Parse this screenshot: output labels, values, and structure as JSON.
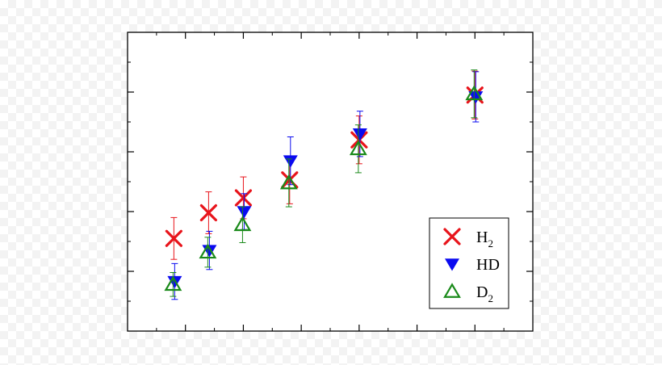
{
  "chart_data": {
    "type": "scatter",
    "title": "",
    "xlabel": "",
    "ylabel": "",
    "xlim": [
      0,
      7
    ],
    "ylim": [
      0,
      5
    ],
    "x_major_ticks": [
      1,
      2,
      3,
      4,
      5,
      6
    ],
    "x_minor_ticks": [
      0.5,
      1.5,
      2.5,
      3.5,
      4.5,
      5.5,
      6.5
    ],
    "y_major_ticks": [
      1,
      2,
      3,
      4
    ],
    "y_minor_ticks": [
      0.5,
      1.5,
      2.5,
      3.5,
      4.5
    ],
    "error_bars": true,
    "grid": false,
    "legend_position": "bottom-right",
    "series": [
      {
        "name": "H",
        "subscript": "2",
        "marker": "x",
        "color": "#e8141b",
        "points": [
          {
            "x": 0.8,
            "y": 1.55,
            "err": 0.35
          },
          {
            "x": 1.4,
            "y": 1.98,
            "err": 0.35
          },
          {
            "x": 2.0,
            "y": 2.23,
            "err": 0.35
          },
          {
            "x": 2.8,
            "y": 2.53,
            "err": 0.4
          },
          {
            "x": 4.0,
            "y": 3.2,
            "err": 0.4
          },
          {
            "x": 6.0,
            "y": 3.95,
            "err": 0.4
          }
        ]
      },
      {
        "name": "HD",
        "subscript": "",
        "marker": "triangle-down",
        "color": "#0a0af0",
        "points": [
          {
            "x": 0.8,
            "y": 0.83,
            "err": 0.3
          },
          {
            "x": 1.4,
            "y": 1.35,
            "err": 0.32
          },
          {
            "x": 2.0,
            "y": 2.0,
            "err": 0.3
          },
          {
            "x": 2.8,
            "y": 2.85,
            "err": 0.4
          },
          {
            "x": 4.0,
            "y": 3.3,
            "err": 0.38
          },
          {
            "x": 6.0,
            "y": 3.92,
            "err": 0.42
          }
        ]
      },
      {
        "name": "D",
        "subscript": "2",
        "marker": "triangle-up",
        "color": "#1a8a1a",
        "points": [
          {
            "x": 0.8,
            "y": 0.78,
            "err": 0.2
          },
          {
            "x": 1.4,
            "y": 1.32,
            "err": 0.25
          },
          {
            "x": 2.0,
            "y": 1.78,
            "err": 0.3
          },
          {
            "x": 2.8,
            "y": 2.48,
            "err": 0.4
          },
          {
            "x": 4.0,
            "y": 3.05,
            "err": 0.4
          },
          {
            "x": 6.0,
            "y": 3.97,
            "err": 0.4
          }
        ]
      }
    ]
  }
}
